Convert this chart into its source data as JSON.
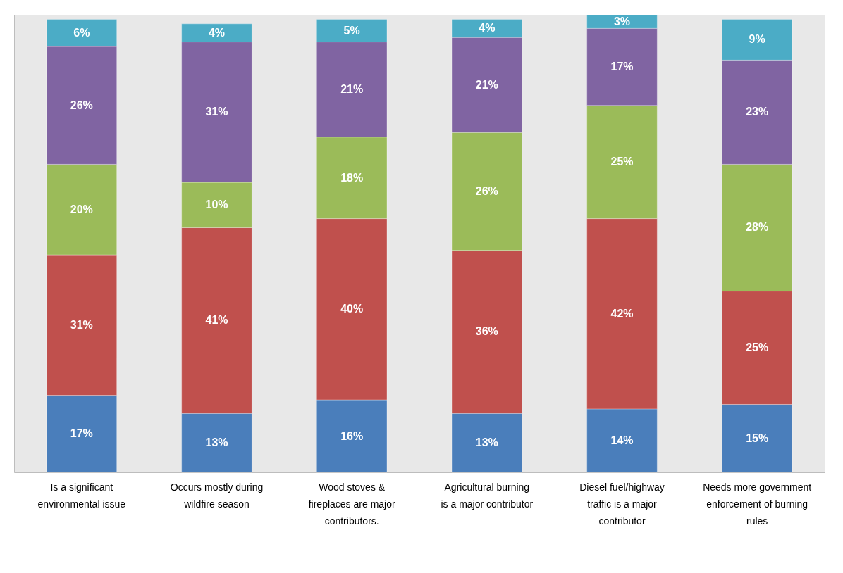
{
  "chart_data": {
    "type": "bar",
    "stacked": true,
    "categories": [
      "Is a significant environmental issue",
      "Occurs mostly during wildfire season",
      "Wood stoves & fireplaces are major contributors.",
      "Agricultural burning is a major contributor",
      "Diesel fuel/highway traffic is a major contributor",
      "Needs more government enforcement of burning rules"
    ],
    "series": [
      {
        "color": "#4a7ebb",
        "values": [
          17,
          13,
          16,
          13,
          14,
          15
        ],
        "value_labels": [
          "17%",
          "13%",
          "16%",
          "13%",
          "14%",
          "15%"
        ]
      },
      {
        "color": "#c0504d",
        "values": [
          31,
          41,
          40,
          36,
          42,
          25
        ],
        "value_labels": [
          "31%",
          "41%",
          "40%",
          "36%",
          "42%",
          "25%"
        ]
      },
      {
        "color": "#9bbb59",
        "values": [
          20,
          10,
          18,
          26,
          25,
          28
        ],
        "value_labels": [
          "20%",
          "10%",
          "18%",
          "26%",
          "25%",
          "28%"
        ]
      },
      {
        "color": "#8064a2",
        "values": [
          26,
          31,
          21,
          21,
          17,
          23
        ],
        "value_labels": [
          "26%",
          "31%",
          "21%",
          "21%",
          "17%",
          "23%"
        ]
      },
      {
        "color": "#4bacc6",
        "values": [
          6,
          4,
          5,
          4,
          3,
          9
        ],
        "value_labels": [
          "6%",
          "4%",
          "5%",
          "4%",
          "3%",
          "9%"
        ]
      }
    ]
  }
}
